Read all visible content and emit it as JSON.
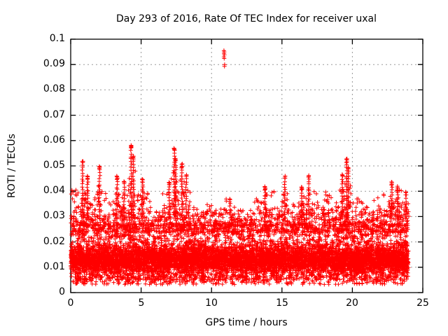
{
  "colors": {
    "marker": "#ff0000",
    "axis": "#000000",
    "grid": "#9a9a9a",
    "background": "#ffffff",
    "text": "#000000"
  },
  "chart_data": {
    "type": "scatter",
    "title": "Day 293 of 2016, Rate Of TEC Index for receiver uxal",
    "xlabel": "GPS time / hours",
    "ylabel": "ROTI / TECUs",
    "xlim": [
      0,
      25
    ],
    "ylim": [
      0,
      0.1
    ],
    "xticks": [
      0,
      5,
      10,
      15,
      20,
      25
    ],
    "xtick_labels": [
      "0",
      "5",
      "10",
      "15",
      "20",
      "25"
    ],
    "yticks": [
      0,
      0.01,
      0.02,
      0.03,
      0.04,
      0.05,
      0.06,
      0.07,
      0.08,
      0.09,
      0.1
    ],
    "ytick_labels": [
      "0",
      "0.01",
      "0.02",
      "0.03",
      "0.04",
      "0.05",
      "0.06",
      "0.07",
      "0.08",
      "0.09",
      "0.1"
    ],
    "grid": true,
    "legend": "none",
    "marker": "plus",
    "marker_size_px": 7,
    "x_data_range": [
      0,
      24
    ],
    "dense_band": {
      "points": 9200,
      "y_core_center": 0.013,
      "y_core_spread": 0.0075,
      "y_uniform_min": 0.005,
      "y_uniform_max": 0.027,
      "y_min": 0.003,
      "y_max": 0.033
    },
    "lower_fringe": {
      "points": 420,
      "y_min": 0.0032,
      "y_max": 0.0068
    },
    "grass_bin_hours": 0.5,
    "grass_bin_max": [
      0.041,
      0.052,
      0.046,
      0.042,
      0.05,
      0.038,
      0.046,
      0.044,
      0.0585,
      0.04,
      0.045,
      0.036,
      0.034,
      0.04,
      0.057,
      0.051,
      0.047,
      0.035,
      0.033,
      0.035,
      0.035,
      0.034,
      0.037,
      0.034,
      0.036,
      0.033,
      0.038,
      0.042,
      0.041,
      0.035,
      0.046,
      0.036,
      0.042,
      0.047,
      0.04,
      0.038,
      0.041,
      0.036,
      0.047,
      0.053,
      0.038,
      0.036,
      0.035,
      0.038,
      0.04,
      0.044,
      0.042,
      0.04
    ],
    "spike_columns": [
      [
        0.85,
        0.052
      ],
      [
        1.2,
        0.046
      ],
      [
        2.05,
        0.05
      ],
      [
        3.3,
        0.046
      ],
      [
        3.8,
        0.044
      ],
      [
        4.3,
        0.0585
      ],
      [
        4.45,
        0.054
      ],
      [
        5.1,
        0.045
      ],
      [
        7.0,
        0.044
      ],
      [
        7.35,
        0.057
      ],
      [
        7.45,
        0.053
      ],
      [
        7.9,
        0.051
      ],
      [
        8.2,
        0.047
      ],
      [
        11.3,
        0.037
      ],
      [
        13.8,
        0.042
      ],
      [
        15.2,
        0.046
      ],
      [
        16.4,
        0.042
      ],
      [
        16.9,
        0.047
      ],
      [
        19.3,
        0.047
      ],
      [
        19.6,
        0.053
      ],
      [
        19.7,
        0.05
      ],
      [
        22.8,
        0.044
      ],
      [
        23.2,
        0.042
      ],
      [
        23.8,
        0.04
      ]
    ],
    "outliers": [
      [
        10.88,
        0.0955
      ],
      [
        10.9,
        0.095
      ],
      [
        10.89,
        0.0944
      ],
      [
        10.91,
        0.0938
      ],
      [
        10.88,
        0.093
      ],
      [
        10.9,
        0.0924
      ],
      [
        10.93,
        0.09
      ],
      [
        10.92,
        0.0893
      ]
    ]
  }
}
